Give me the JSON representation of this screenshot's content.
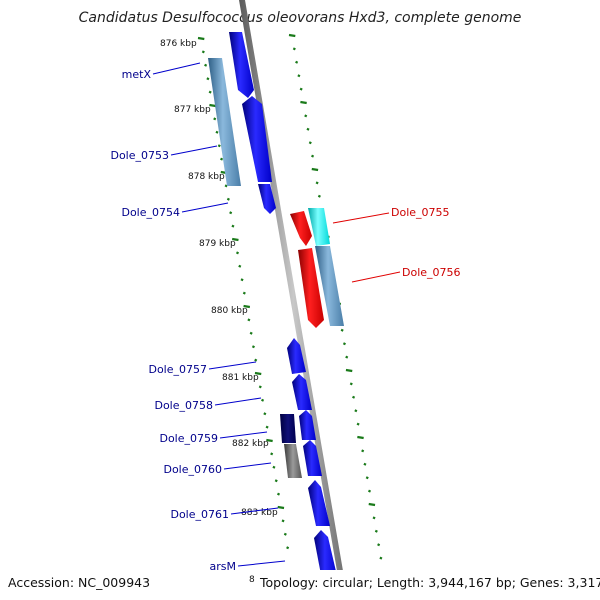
{
  "title": "Candidatus Desulfococcus oleovorans Hxd3, complete genome",
  "accession_label": "Accession: NC_009943",
  "topology_label": "Topology: circular; Length: 3,944,167 bp; Genes: 3,317",
  "partial_tick_label": "8",
  "colors": {
    "forward_gene": "#0000ee",
    "reverse_gene": "#ee0000",
    "gene_label_forward": "#00008b",
    "gene_label_reverse": "#cc0000",
    "tick_marks": "#1a7a1a",
    "backbone": "#888888"
  },
  "ticks": [
    {
      "label": "876 kbp"
    },
    {
      "label": "877 kbp"
    },
    {
      "label": "878 kbp"
    },
    {
      "label": "879 kbp"
    },
    {
      "label": "880 kbp"
    },
    {
      "label": "881 kbp"
    },
    {
      "label": "882 kbp"
    },
    {
      "label": "883 kbp"
    }
  ],
  "genes": [
    {
      "name": "metX",
      "strand": "forward"
    },
    {
      "name": "Dole_0753",
      "strand": "forward"
    },
    {
      "name": "Dole_0754",
      "strand": "forward"
    },
    {
      "name": "Dole_0755",
      "strand": "reverse"
    },
    {
      "name": "Dole_0756",
      "strand": "reverse"
    },
    {
      "name": "Dole_0757",
      "strand": "forward"
    },
    {
      "name": "Dole_0758",
      "strand": "forward"
    },
    {
      "name": "Dole_0759",
      "strand": "forward"
    },
    {
      "name": "Dole_0760",
      "strand": "forward"
    },
    {
      "name": "Dole_0761",
      "strand": "forward"
    },
    {
      "name": "arsM",
      "strand": "forward"
    }
  ]
}
